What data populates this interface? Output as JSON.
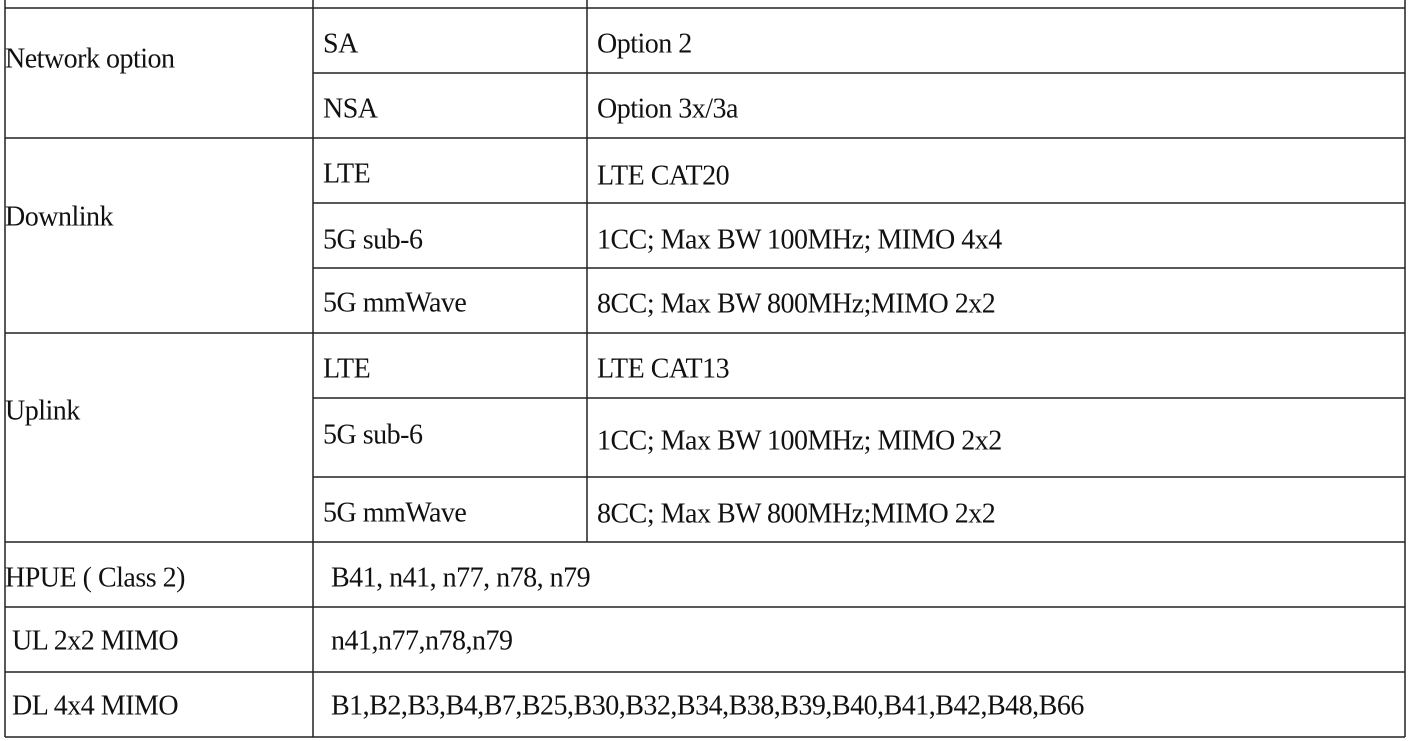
{
  "table": {
    "rows": [
      {
        "label": "Network option",
        "items": [
          [
            "SA",
            "Option 2"
          ],
          [
            "NSA",
            "Option 3x/3a"
          ]
        ]
      },
      {
        "label": "Downlink",
        "items": [
          [
            "LTE",
            "LTE CAT20"
          ],
          [
            "5G sub-6",
            "1CC; Max BW 100MHz; MIMO 4x4"
          ],
          [
            "5G mmWave",
            "8CC; Max BW 800MHz;MIMO 2x2"
          ]
        ]
      },
      {
        "label": "Uplink",
        "items": [
          [
            "LTE",
            "LTE CAT13"
          ],
          [
            "5G sub-6",
            "1CC; Max BW 100MHz; MIMO 2x2"
          ],
          [
            "5G mmWave",
            "8CC; Max BW 800MHz;MIMO 2x2"
          ]
        ]
      },
      {
        "label": "HPUE ( Class 2)",
        "value": "B41, n41, n77, n78, n79"
      },
      {
        "label": "UL 2x2 MIMO",
        "value": "n41,n77,n78,n79"
      },
      {
        "label": "DL 4x4 MIMO",
        "value": "B1,B2,B3,B4,B7,B25,B30,B32,B34,B38,B39,B40,B41,B42,B48,B66"
      }
    ]
  }
}
